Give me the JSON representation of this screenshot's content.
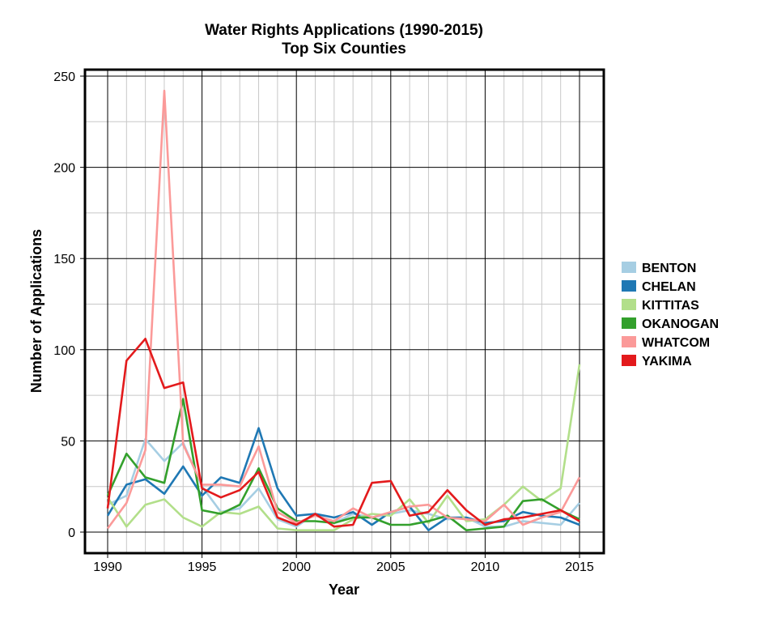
{
  "chart_data": {
    "type": "line",
    "title": "Water Rights Applications (1990-2015)",
    "subtitle": "Top Six Counties",
    "xlabel": "Year",
    "ylabel": "Number of Applications",
    "xlim": [
      1990,
      2015
    ],
    "ylim": [
      -10,
      255
    ],
    "xticks": [
      1990,
      1995,
      2000,
      2005,
      2010,
      2015
    ],
    "yticks": [
      0,
      50,
      100,
      150,
      200,
      250
    ],
    "grid": true,
    "legend_position": "right",
    "x": [
      1990,
      1991,
      1992,
      1993,
      1994,
      1995,
      1996,
      1997,
      1998,
      1999,
      2000,
      2001,
      2002,
      2003,
      2004,
      2005,
      2006,
      2007,
      2008,
      2009,
      2010,
      2011,
      2012,
      2013,
      2014,
      2015
    ],
    "series": [
      {
        "name": "BENTON",
        "color": "#a6cee3",
        "values": [
          15,
          20,
          51,
          39,
          49,
          25,
          11,
          13,
          24,
          7,
          3,
          10,
          5,
          10,
          8,
          10,
          12,
          10,
          7,
          8,
          3,
          3,
          6,
          5,
          4,
          16
        ]
      },
      {
        "name": "CHELAN",
        "color": "#1f78b4",
        "values": [
          9,
          26,
          29,
          21,
          36,
          20,
          30,
          27,
          57,
          24,
          9,
          10,
          8,
          11,
          4,
          11,
          14,
          1,
          8,
          8,
          5,
          6,
          11,
          9,
          8,
          4
        ]
      },
      {
        "name": "KITTITAS",
        "color": "#b2df8a",
        "values": [
          19,
          3,
          15,
          18,
          8,
          3,
          11,
          10,
          14,
          2,
          1,
          1,
          1,
          7,
          10,
          9,
          18,
          5,
          20,
          6,
          7,
          15,
          25,
          17,
          24,
          92
        ]
      },
      {
        "name": "OKANOGAN",
        "color": "#33a02c",
        "values": [
          20,
          43,
          30,
          27,
          73,
          12,
          10,
          15,
          35,
          13,
          6,
          6,
          5,
          8,
          8,
          4,
          4,
          6,
          9,
          1,
          2,
          3,
          17,
          18,
          12,
          7
        ]
      },
      {
        "name": "WHATCOM",
        "color": "#fb9a99",
        "values": [
          2,
          16,
          45,
          242,
          48,
          26,
          26,
          25,
          47,
          11,
          5,
          9,
          6,
          13,
          8,
          11,
          14,
          15,
          8,
          7,
          6,
          15,
          4,
          8,
          11,
          30
        ]
      },
      {
        "name": "YAKIMA",
        "color": "#e31a1c",
        "values": [
          13,
          94,
          106,
          79,
          82,
          24,
          19,
          23,
          33,
          8,
          4,
          10,
          3,
          4,
          27,
          28,
          9,
          11,
          23,
          12,
          4,
          7,
          8,
          10,
          12,
          6
        ]
      }
    ]
  }
}
